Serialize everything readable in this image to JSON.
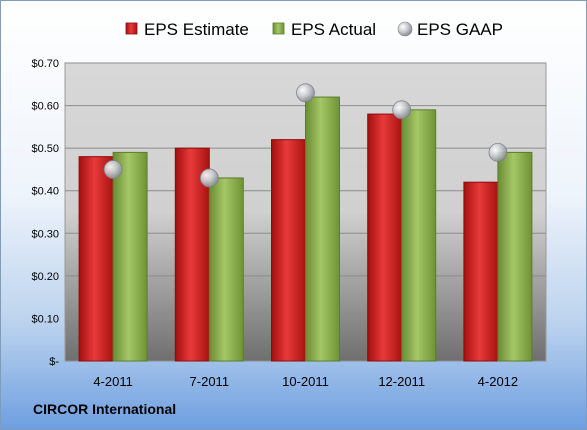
{
  "company": "CIRCOR International",
  "chart_data": {
    "type": "bar",
    "categories": [
      "4-2011",
      "7-2011",
      "10-2011",
      "12-2011",
      "4-2012"
    ],
    "series": [
      {
        "name": "EPS Estimate",
        "kind": "bar",
        "color": "#d42020",
        "values": [
          0.48,
          0.5,
          0.52,
          0.58,
          0.42
        ]
      },
      {
        "name": "EPS Actual",
        "kind": "bar",
        "color": "#8ab04a",
        "values": [
          0.49,
          0.43,
          0.62,
          0.59,
          0.49
        ]
      },
      {
        "name": "EPS GAAP",
        "kind": "marker",
        "color": "#c0c4c8",
        "values": [
          0.45,
          0.43,
          0.63,
          0.59,
          0.49
        ]
      }
    ],
    "ylim": [
      0,
      0.7
    ],
    "yticks": [
      0,
      0.1,
      0.2,
      0.3,
      0.4,
      0.5,
      0.6,
      0.7
    ],
    "ytick_labels": [
      "$-",
      "$0.10",
      "$0.20",
      "$0.30",
      "$0.40",
      "$0.50",
      "$0.60",
      "$0.70"
    ],
    "grid": true,
    "legend_position": "top"
  }
}
